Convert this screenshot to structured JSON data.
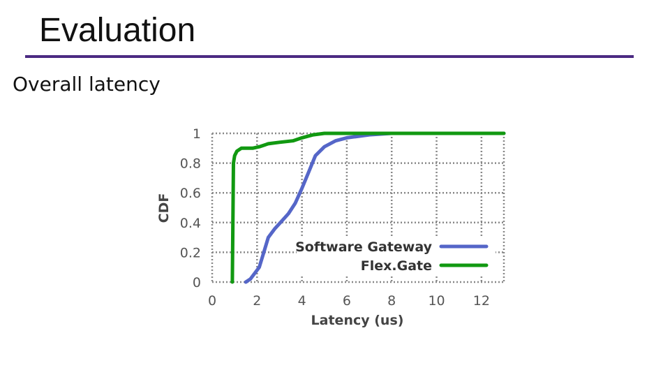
{
  "slide": {
    "title": "Evaluation",
    "subtitle": "Overall latency"
  },
  "colors": {
    "rule": "#4b2a82",
    "grid": "#888888"
  },
  "chart_data": {
    "type": "line",
    "xlabel": "Latency (us)",
    "ylabel": "CDF",
    "xlim": [
      0,
      13
    ],
    "ylim": [
      0,
      1
    ],
    "xticks": [
      "0",
      "2",
      "4",
      "6",
      "8",
      "10",
      "12"
    ],
    "yticks": [
      "0",
      "0.2",
      "0.4",
      "0.6",
      "0.8",
      "1"
    ],
    "grid": true,
    "legend_position": "lower-right",
    "series": [
      {
        "name": "Software Gateway",
        "color": "#5566c8",
        "x": [
          1.5,
          1.7,
          2.1,
          2.3,
          2.5,
          2.8,
          3.1,
          3.4,
          3.7,
          4.0,
          4.3,
          4.6,
          5.0,
          5.5,
          6.0,
          7.0,
          8.0,
          13.0
        ],
        "y": [
          0.0,
          0.02,
          0.1,
          0.2,
          0.3,
          0.36,
          0.41,
          0.46,
          0.53,
          0.63,
          0.74,
          0.85,
          0.91,
          0.95,
          0.97,
          0.99,
          1.0,
          1.0
        ]
      },
      {
        "name": "Flex.Gate",
        "color": "#119911",
        "x": [
          0.9,
          0.93,
          0.95,
          1.0,
          1.1,
          1.3,
          1.8,
          2.1,
          2.5,
          3.0,
          3.6,
          4.0,
          4.5,
          5.0,
          13.0
        ],
        "y": [
          0.0,
          0.5,
          0.8,
          0.85,
          0.88,
          0.9,
          0.9,
          0.91,
          0.93,
          0.94,
          0.95,
          0.97,
          0.99,
          1.0,
          1.0
        ]
      }
    ]
  }
}
